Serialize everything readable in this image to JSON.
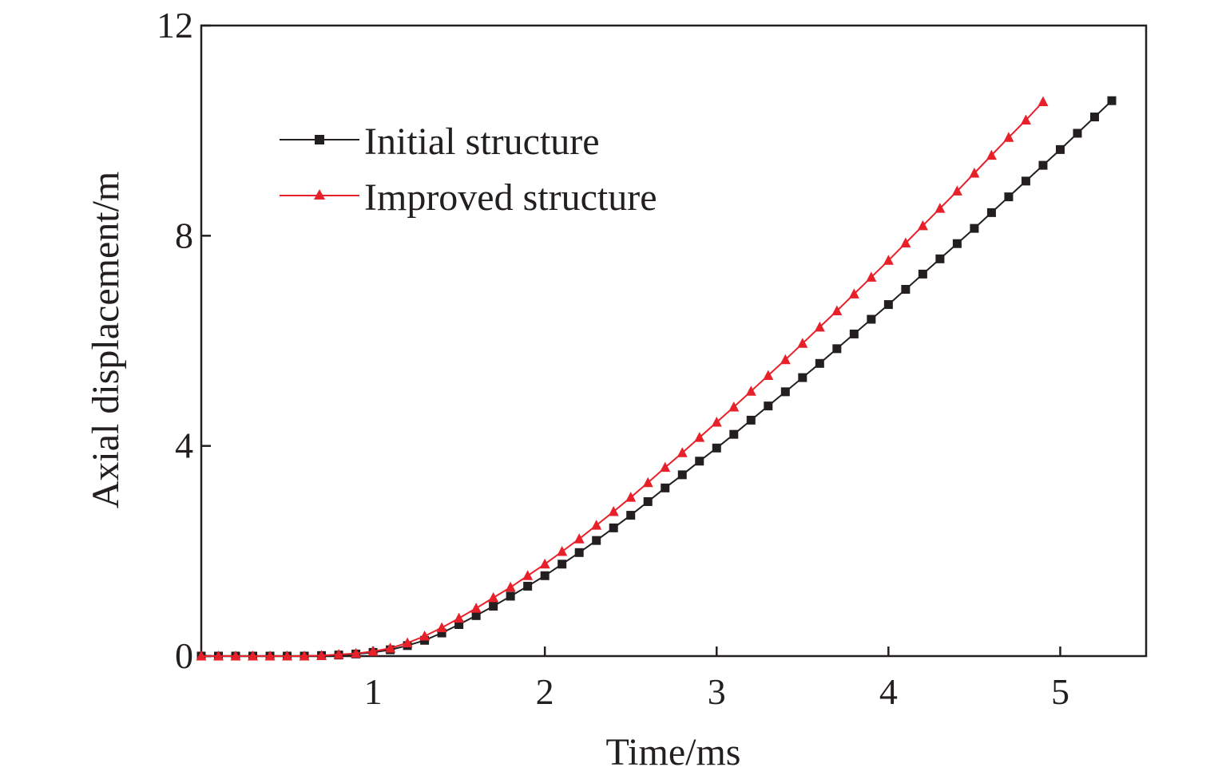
{
  "chart_data": {
    "type": "line",
    "title": "",
    "xlabel": "Time/ms",
    "ylabel": "Axial displacement/m",
    "xlim": [
      0,
      5.5
    ],
    "ylim": [
      0,
      12
    ],
    "xticks": [
      1,
      2,
      3,
      4,
      5
    ],
    "yticks": [
      0,
      4,
      8,
      12
    ],
    "xtick_labels": [
      "1",
      "2",
      "3",
      "4",
      "5"
    ],
    "ytick_labels": [
      "0",
      "4",
      "8",
      "12"
    ],
    "grid": false,
    "legend_position": "upper-left",
    "series": [
      {
        "name": "Initial structure",
        "color": "#231f20",
        "marker": "square",
        "x": [
          0,
          0.1,
          0.2,
          0.3,
          0.4,
          0.5,
          0.6,
          0.7,
          0.8,
          0.9,
          1.0,
          1.1,
          1.2,
          1.3,
          1.4,
          1.5,
          1.6,
          1.7,
          1.8,
          1.9,
          2.0,
          2.1,
          2.2,
          2.3,
          2.4,
          2.5,
          2.6,
          2.7,
          2.8,
          2.9,
          3.0,
          3.1,
          3.2,
          3.3,
          3.4,
          3.5,
          3.6,
          3.7,
          3.8,
          3.9,
          4.0,
          4.1,
          4.2,
          4.3,
          4.4,
          4.5,
          4.6,
          4.7,
          4.8,
          4.9,
          5.0,
          5.1,
          5.2,
          5.3
        ],
        "values": [
          0,
          0,
          0,
          0,
          0,
          0,
          0,
          0.01,
          0.02,
          0.04,
          0.07,
          0.12,
          0.2,
          0.3,
          0.44,
          0.6,
          0.77,
          0.95,
          1.14,
          1.33,
          1.53,
          1.75,
          1.97,
          2.2,
          2.44,
          2.68,
          2.94,
          3.2,
          3.45,
          3.71,
          3.96,
          4.22,
          4.49,
          4.76,
          5.03,
          5.3,
          5.57,
          5.85,
          6.13,
          6.41,
          6.69,
          6.98,
          7.27,
          7.56,
          7.85,
          8.14,
          8.44,
          8.74,
          9.04,
          9.34,
          9.64,
          9.95,
          10.26,
          10.57
        ]
      },
      {
        "name": "Improved structure",
        "color": "#e8202a",
        "marker": "triangle",
        "x": [
          0,
          0.1,
          0.2,
          0.3,
          0.4,
          0.5,
          0.6,
          0.7,
          0.8,
          0.9,
          1.0,
          1.1,
          1.2,
          1.3,
          1.4,
          1.5,
          1.6,
          1.7,
          1.8,
          1.9,
          2.0,
          2.1,
          2.2,
          2.3,
          2.4,
          2.5,
          2.6,
          2.7,
          2.8,
          2.9,
          3.0,
          3.1,
          3.2,
          3.3,
          3.4,
          3.5,
          3.6,
          3.7,
          3.8,
          3.9,
          4.0,
          4.1,
          4.2,
          4.3,
          4.4,
          4.5,
          4.6,
          4.7,
          4.8,
          4.9
        ],
        "values": [
          0,
          0,
          0,
          0,
          0,
          0,
          0,
          0.01,
          0.03,
          0.05,
          0.09,
          0.15,
          0.25,
          0.38,
          0.54,
          0.72,
          0.91,
          1.11,
          1.31,
          1.53,
          1.75,
          1.99,
          2.23,
          2.49,
          2.75,
          3.02,
          3.3,
          3.59,
          3.87,
          4.16,
          4.45,
          4.74,
          5.04,
          5.34,
          5.64,
          5.95,
          6.26,
          6.57,
          6.89,
          7.21,
          7.53,
          7.86,
          8.19,
          8.52,
          8.85,
          9.19,
          9.53,
          9.87,
          10.2,
          10.55
        ]
      }
    ]
  }
}
